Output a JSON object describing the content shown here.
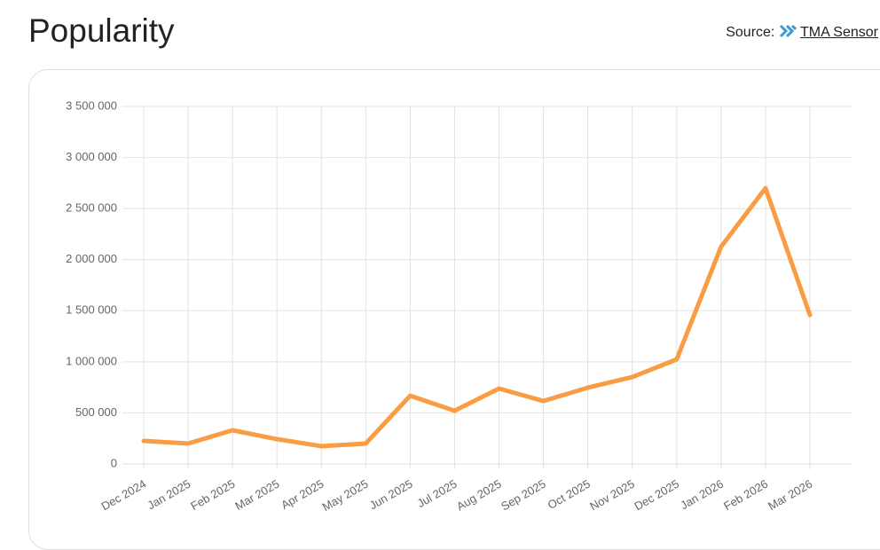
{
  "header": {
    "title": "Popularity",
    "source_label": "Source:",
    "source_link": "TMA Sensor"
  },
  "chart_data": {
    "type": "line",
    "categories": [
      "Dec 2024",
      "Jan 2025",
      "Feb 2025",
      "Mar 2025",
      "Apr 2025",
      "May 2025",
      "Jun 2025",
      "Jul 2025",
      "Aug 2025",
      "Sep 2025",
      "Oct 2025",
      "Nov 2025",
      "Dec 2025",
      "Jan 2026",
      "Feb 2026",
      "Mar 2026"
    ],
    "series": [
      {
        "color": "#f99d45",
        "values": [
          226000,
          200000,
          330000,
          243000,
          174000,
          200000,
          668000,
          521000,
          738000,
          616000,
          747000,
          851000,
          1024000,
          2127000,
          2700000,
          1458000
        ]
      }
    ],
    "ylim": [
      0,
      3500000
    ],
    "yticks": [
      0,
      {
        "value": 500000,
        "label": "500 000"
      },
      {
        "value": 1000000,
        "label": "1 000 000"
      },
      {
        "value": 1500000,
        "label": "1 500 000"
      },
      {
        "value": 2000000,
        "label": "2 000 000"
      },
      {
        "value": 2500000,
        "label": "2 500 000"
      },
      {
        "value": 3000000,
        "label": "3 000 000"
      },
      {
        "value": 3500000,
        "label": "3 500 000"
      }
    ],
    "grid": true
  }
}
